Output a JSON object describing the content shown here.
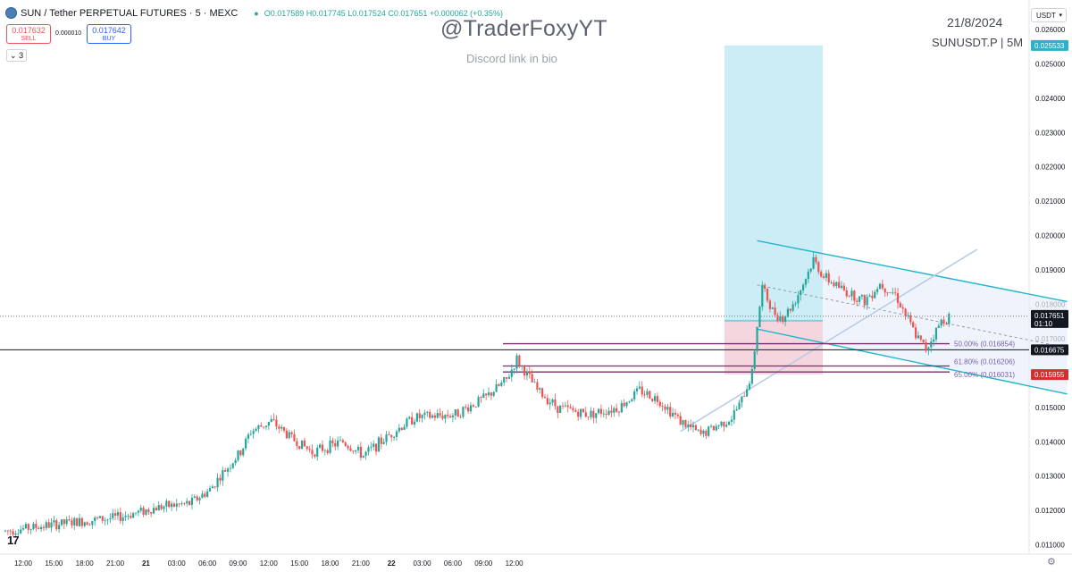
{
  "header": {
    "symbol": "SUN / Tether PERPETUAL FUTURES · 5 · MEXC",
    "ohlc": "O0.017589 H0.017745 L0.017524 C0.017651 +0.000062 (+0.35%)",
    "sell_price": "0.017632",
    "sell_label": "SELL",
    "spread": "0.000010",
    "buy_price": "0.017642",
    "buy_label": "BUY",
    "collapsed_count": "3"
  },
  "watermark": {
    "handle": "@TraderFoxyYT",
    "subtitle": "Discord link in bio",
    "date": "21/8/2024",
    "pair": "SUNUSDT.P | 5M"
  },
  "currency": "USDT",
  "colors": {
    "up": "#26a69a",
    "down": "#ef5350",
    "channel": "#22b5cc",
    "fib": "#7b2d6e",
    "target_zone": "#c9ecf5",
    "stop_zone": "#f4d3dc",
    "channel_fill": "#e8eefb"
  },
  "chart_data": {
    "type": "candlestick",
    "ylim": [
      0.0106,
      0.0267
    ],
    "y_ticks": [
      "0.011000",
      "0.012000",
      "0.013000",
      "0.014000",
      "0.015000",
      "0.016000",
      "0.017000",
      "0.018000",
      "0.019000",
      "0.020000",
      "0.021000",
      "0.022000",
      "0.023000",
      "0.024000",
      "0.025000",
      "0.026000"
    ],
    "x_ticks": [
      "12:00",
      "15:00",
      "18:00",
      "21:00",
      "21",
      "03:00",
      "06:00",
      "09:00",
      "12:00",
      "15:00",
      "18:00",
      "21:00",
      "22",
      "03:00",
      "06:00",
      "09:00",
      "12:00"
    ],
    "price_path": [
      [
        0,
        0.0114
      ],
      [
        5,
        0.0116
      ],
      [
        11,
        0.0118
      ],
      [
        15,
        0.0121
      ],
      [
        18,
        0.0122
      ],
      [
        20,
        0.0126
      ],
      [
        21,
        0.013
      ],
      [
        23,
        0.0137
      ],
      [
        24,
        0.0143
      ],
      [
        26,
        0.0146
      ],
      [
        28,
        0.0141
      ],
      [
        30,
        0.0137
      ],
      [
        33,
        0.014
      ],
      [
        35,
        0.0136
      ],
      [
        38,
        0.0143
      ],
      [
        40,
        0.0147
      ],
      [
        44,
        0.0148
      ],
      [
        47,
        0.0153
      ],
      [
        49,
        0.0158
      ],
      [
        50,
        0.0164
      ],
      [
        52,
        0.0155
      ],
      [
        54,
        0.015
      ],
      [
        57,
        0.0148
      ],
      [
        60,
        0.015
      ],
      [
        62,
        0.0155
      ],
      [
        64,
        0.0152
      ],
      [
        66,
        0.0146
      ],
      [
        68,
        0.0142
      ],
      [
        71,
        0.0147
      ],
      [
        72,
        0.0152
      ],
      [
        73,
        0.016
      ],
      [
        73.5,
        0.0174
      ],
      [
        74,
        0.0185
      ],
      [
        75,
        0.0178
      ],
      [
        76,
        0.0176
      ],
      [
        77,
        0.018
      ],
      [
        78,
        0.0186
      ],
      [
        79,
        0.0193
      ],
      [
        80,
        0.0188
      ],
      [
        82,
        0.0184
      ],
      [
        84,
        0.0181
      ],
      [
        85.5,
        0.0186
      ],
      [
        87,
        0.0183
      ],
      [
        88,
        0.0177
      ],
      [
        89,
        0.0171
      ],
      [
        90,
        0.0167
      ],
      [
        91.5,
        0.0175
      ],
      [
        92.3,
        0.017651
      ]
    ],
    "last_price": "0.017651",
    "last_countdown": "01:10",
    "price_labels": [
      {
        "value": 0.025533,
        "text": "0.025533",
        "role": "target"
      },
      {
        "value": 0.017523,
        "text": "0.017523",
        "role": "entry"
      },
      {
        "value": 0.016675,
        "text": "0.016675",
        "role": "horizontal-line"
      },
      {
        "value": 0.015955,
        "text": "0.015955",
        "role": "stop"
      }
    ],
    "fib_levels": [
      {
        "text": "50.00% (0.016854)",
        "value": 0.016854
      },
      {
        "text": "61.80% (0.016206)",
        "value": 0.016206
      },
      {
        "text": "65.00% (0.016031)",
        "value": 0.016031
      }
    ],
    "horizontal_level": 0.016675,
    "position": {
      "entry": 0.017523,
      "target": 0.025533,
      "stop": 0.015955
    },
    "channel": {
      "upper": [
        [
          73.5,
          0.01985
        ],
        [
          103.8,
          0.01808
        ]
      ],
      "lower": [
        [
          73.5,
          0.01728
        ],
        [
          103.8,
          0.01539
        ]
      ]
    },
    "trendline": [
      [
        66,
        0.0143
      ],
      [
        95,
        0.0196
      ]
    ]
  }
}
